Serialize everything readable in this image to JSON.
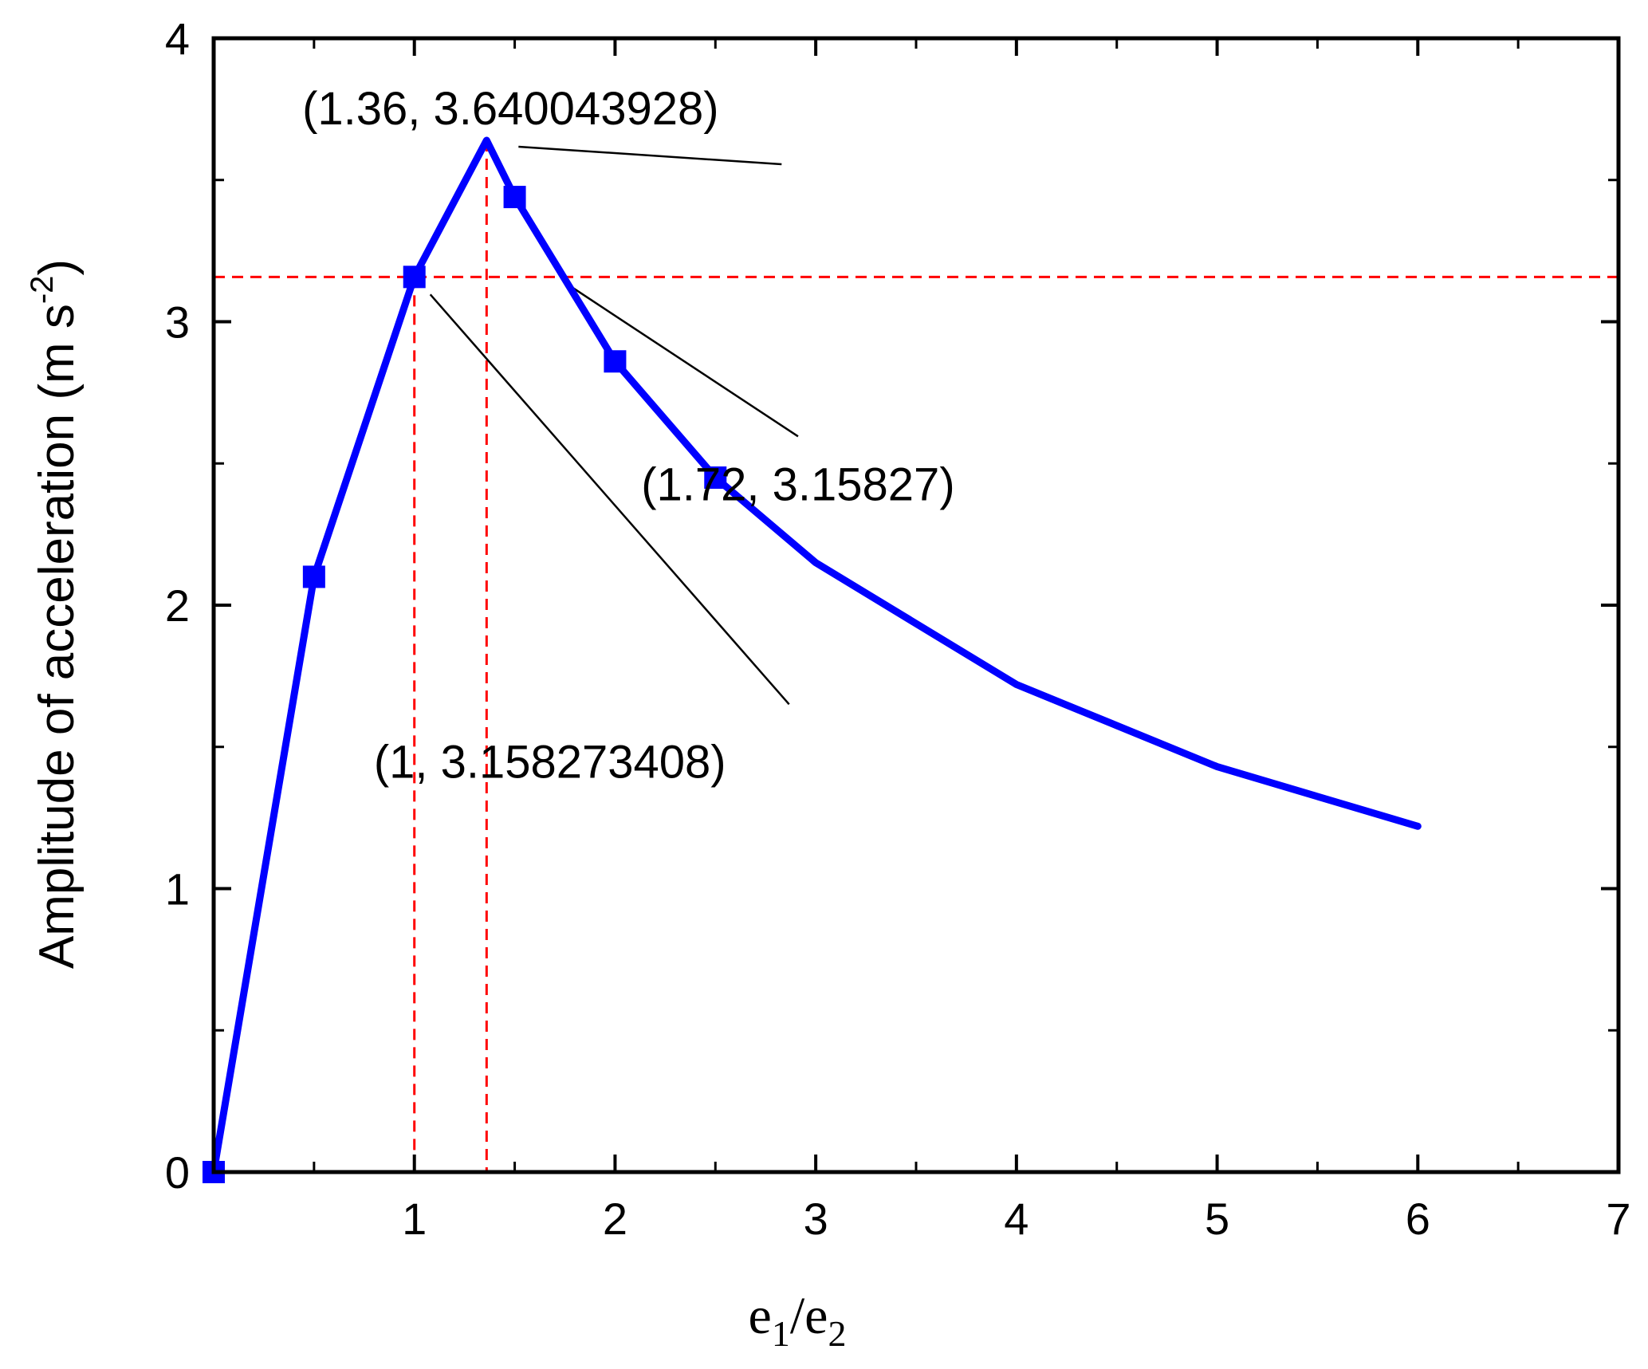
{
  "chart_data": {
    "type": "line",
    "title": "",
    "xlabel": {
      "base1": "e",
      "sub1": "1",
      "slash": "/",
      "base2": "e",
      "sub2": "2"
    },
    "ylabel": {
      "text": "Amplitude of acceleration (m s",
      "sup": "-2",
      "close": ")"
    },
    "xlim": [
      0,
      7
    ],
    "ylim": [
      0,
      4
    ],
    "x_ticks": [
      1,
      2,
      3,
      4,
      5,
      6,
      7
    ],
    "x_tick_labels": [
      "1",
      "2",
      "3",
      "4",
      "5",
      "6",
      "7"
    ],
    "x_minor_ticks": [
      0.5,
      1.5,
      2.5,
      3.5,
      4.5,
      5.5,
      6.5
    ],
    "y_ticks": [
      0,
      1,
      2,
      3,
      4
    ],
    "y_tick_labels": [
      "0",
      "1",
      "2",
      "3",
      "4"
    ],
    "y_minor_ticks": [
      0.5,
      1.5,
      2.5,
      3.5
    ],
    "grid": false,
    "series": [
      {
        "color": "#0000ff",
        "x": [
          0,
          0.5,
          1,
          1.36,
          1.5,
          2,
          2.5,
          3,
          4,
          5,
          6
        ],
        "y": [
          0,
          2.1,
          3.158,
          3.64,
          3.44,
          2.86,
          2.45,
          2.15,
          1.72,
          1.43,
          1.22
        ],
        "marker_x": [
          0,
          0.5,
          1,
          1.5,
          2,
          2.5
        ],
        "marker_y": [
          0,
          2.1,
          3.158,
          3.44,
          2.86,
          2.45
        ]
      }
    ],
    "reference_lines": {
      "color": "#ff0000",
      "horizontal_y": 3.158,
      "vertical_x": [
        1,
        1.36
      ]
    },
    "annotations": [
      {
        "text": "(1.36, 3.640043928)",
        "x": 1.36,
        "y": 3.64
      },
      {
        "text": "(1.72, 3.15827)",
        "x": 1.72,
        "y": 3.158
      },
      {
        "text": "(1, 3.158273408)",
        "x": 1,
        "y": 3.158
      }
    ]
  }
}
